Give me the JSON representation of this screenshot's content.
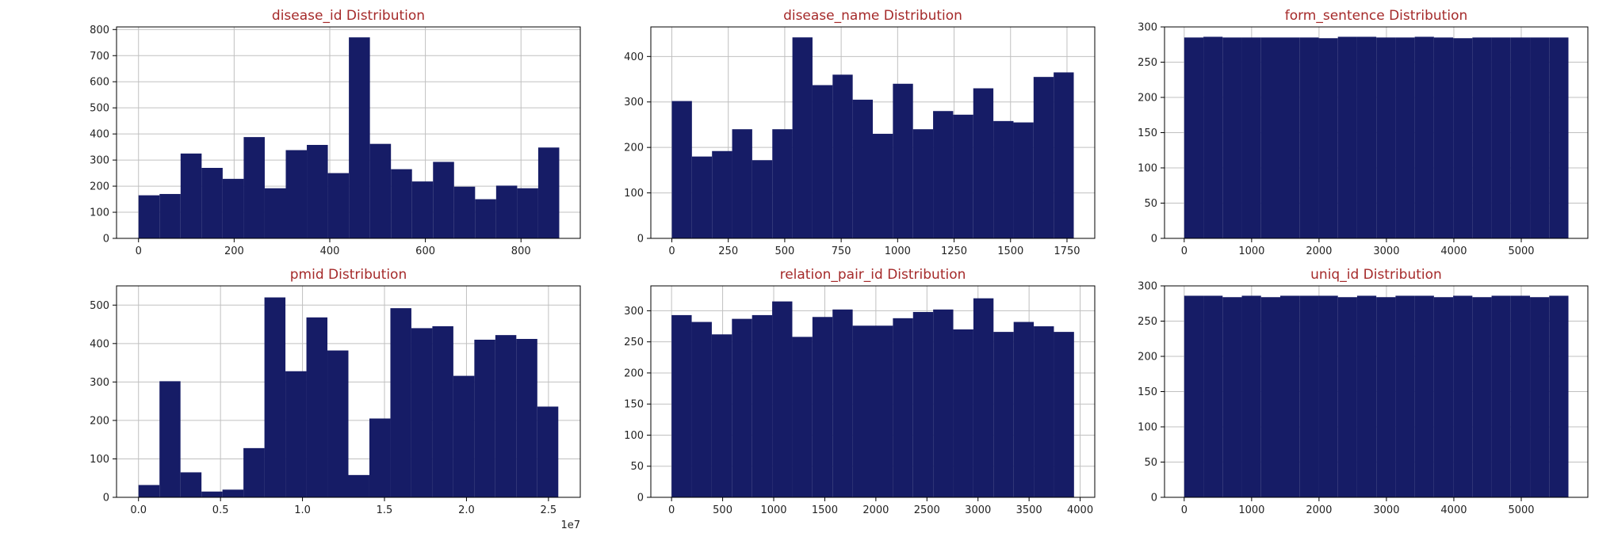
{
  "colors": {
    "bar": "#161c66",
    "title": "#a52a2a",
    "grid": "#c0c0c0"
  },
  "chart_data": [
    {
      "type": "bar",
      "title": "disease_id Distribution",
      "bin_edges": [
        0,
        44,
        88,
        132,
        176,
        220,
        264,
        308,
        352,
        396,
        440,
        484,
        528,
        572,
        616,
        660,
        704,
        748,
        792,
        836,
        880
      ],
      "values": [
        165,
        170,
        325,
        270,
        228,
        388,
        192,
        338,
        358,
        250,
        770,
        362,
        265,
        218,
        293,
        198,
        150,
        202,
        192,
        348
      ],
      "xlim": [
        -46,
        924
      ],
      "ylim": [
        0,
        810
      ],
      "xticks": [
        0,
        200,
        400,
        600,
        800
      ],
      "xtick_labels": [
        "0",
        "200",
        "400",
        "600",
        "800"
      ],
      "yticks": [
        0,
        100,
        200,
        300,
        400,
        500,
        600,
        700,
        800
      ],
      "ytick_labels": [
        "0",
        "100",
        "200",
        "300",
        "400",
        "500",
        "600",
        "700",
        "800"
      ],
      "grid": true
    },
    {
      "type": "bar",
      "title": "disease_name Distribution",
      "bin_edges": [
        0,
        89,
        178,
        267,
        356,
        445,
        534,
        623,
        712,
        801,
        890,
        979,
        1068,
        1157,
        1246,
        1335,
        1424,
        1513,
        1602,
        1691,
        1780
      ],
      "values": [
        302,
        180,
        192,
        240,
        172,
        240,
        442,
        337,
        360,
        305,
        230,
        340,
        240,
        280,
        272,
        330,
        258,
        255,
        355,
        365
      ],
      "xlim": [
        -93,
        1873
      ],
      "ylim": [
        0,
        465
      ],
      "xticks": [
        0,
        250,
        500,
        750,
        1000,
        1250,
        1500,
        1750
      ],
      "xtick_labels": [
        "0",
        "250",
        "500",
        "750",
        "1000",
        "1250",
        "1500",
        "1750"
      ],
      "yticks": [
        0,
        100,
        200,
        300,
        400
      ],
      "ytick_labels": [
        "0",
        "100",
        "200",
        "300",
        "400"
      ],
      "grid": true
    },
    {
      "type": "bar",
      "title": "form_sentence Distribution",
      "bin_edges": [
        0,
        285,
        570,
        855,
        1140,
        1425,
        1710,
        1995,
        2280,
        2565,
        2850,
        3135,
        3420,
        3705,
        3990,
        4275,
        4560,
        4845,
        5130,
        5415,
        5700
      ],
      "values": [
        285,
        286,
        285,
        285,
        285,
        285,
        285,
        284,
        286,
        286,
        285,
        285,
        286,
        285,
        284,
        285,
        285,
        285,
        285,
        285
      ],
      "xlim": [
        -292,
        5988
      ],
      "ylim": [
        0,
        300
      ],
      "xticks": [
        0,
        1000,
        2000,
        3000,
        4000,
        5000
      ],
      "xtick_labels": [
        "0",
        "1000",
        "2000",
        "3000",
        "4000",
        "5000"
      ],
      "yticks": [
        0,
        50,
        100,
        150,
        200,
        250,
        300
      ],
      "ytick_labels": [
        "0",
        "50",
        "100",
        "150",
        "200",
        "250",
        "300"
      ],
      "grid": true
    },
    {
      "type": "bar",
      "title": "pmid Distribution",
      "offset_text": "1e7",
      "bin_edges": [
        0.0,
        0.128,
        0.256,
        0.384,
        0.512,
        0.64,
        0.768,
        0.896,
        1.024,
        1.152,
        1.28,
        1.408,
        1.536,
        1.664,
        1.792,
        1.92,
        2.048,
        2.176,
        2.304,
        2.432,
        2.56
      ],
      "values": [
        32,
        302,
        65,
        15,
        20,
        128,
        520,
        328,
        468,
        382,
        58,
        205,
        492,
        440,
        445,
        316,
        410,
        422,
        412,
        236
      ],
      "xlim": [
        -0.134,
        2.694
      ],
      "ylim": [
        0,
        550
      ],
      "xticks": [
        0.0,
        0.5,
        1.0,
        1.5,
        2.0,
        2.5
      ],
      "xtick_labels": [
        "0.0",
        "0.5",
        "1.0",
        "1.5",
        "2.0",
        "2.5"
      ],
      "yticks": [
        0,
        100,
        200,
        300,
        400,
        500
      ],
      "ytick_labels": [
        "0",
        "100",
        "200",
        "300",
        "400",
        "500"
      ],
      "grid": true
    },
    {
      "type": "bar",
      "title": "relation_pair_id Distribution",
      "bin_edges": [
        0,
        197,
        394,
        591,
        788,
        985,
        1182,
        1379,
        1576,
        1773,
        1970,
        2167,
        2364,
        2561,
        2758,
        2955,
        3152,
        3349,
        3546,
        3743,
        3940
      ],
      "values": [
        293,
        282,
        262,
        287,
        293,
        315,
        258,
        290,
        302,
        276,
        276,
        288,
        298,
        302,
        270,
        320,
        266,
        282,
        275,
        266
      ],
      "xlim": [
        -203,
        4143
      ],
      "ylim": [
        0,
        340
      ],
      "xticks": [
        0,
        500,
        1000,
        1500,
        2000,
        2500,
        3000,
        3500,
        4000
      ],
      "xtick_labels": [
        "0",
        "500",
        "1000",
        "1500",
        "2000",
        "2500",
        "3000",
        "3500",
        "4000"
      ],
      "yticks": [
        0,
        50,
        100,
        150,
        200,
        250,
        300
      ],
      "ytick_labels": [
        "0",
        "50",
        "100",
        "150",
        "200",
        "250",
        "300"
      ],
      "grid": true
    },
    {
      "type": "bar",
      "title": "uniq_id Distribution",
      "bin_edges": [
        0,
        285,
        570,
        855,
        1140,
        1425,
        1710,
        1995,
        2280,
        2565,
        2850,
        3135,
        3420,
        3705,
        3990,
        4275,
        4560,
        4845,
        5130,
        5415,
        5700
      ],
      "values": [
        286,
        286,
        284,
        286,
        284,
        286,
        286,
        286,
        284,
        286,
        284,
        286,
        286,
        284,
        286,
        284,
        286,
        286,
        284,
        286
      ],
      "xlim": [
        -292,
        5988
      ],
      "ylim": [
        0,
        300
      ],
      "xticks": [
        0,
        1000,
        2000,
        3000,
        4000,
        5000
      ],
      "xtick_labels": [
        "0",
        "1000",
        "2000",
        "3000",
        "4000",
        "5000"
      ],
      "yticks": [
        0,
        50,
        100,
        150,
        200,
        250,
        300
      ],
      "ytick_labels": [
        "0",
        "50",
        "100",
        "150",
        "200",
        "250",
        "300"
      ],
      "grid": true
    }
  ]
}
